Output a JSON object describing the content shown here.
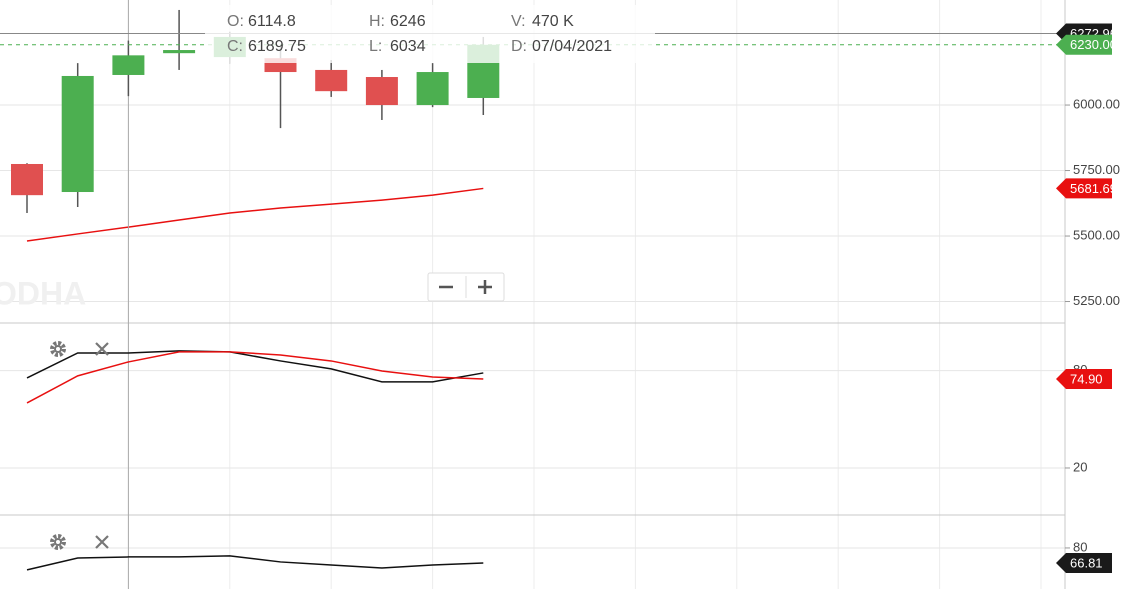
{
  "chart_data": [
    {
      "type": "candlestick",
      "categories": [
        null,
        null,
        null,
        null,
        null,
        null,
        null,
        null,
        null,
        null
      ],
      "open": [
        5775,
        5668,
        6114.8,
        6198,
        6183,
        6179,
        6134,
        6107,
        6000,
        6027
      ],
      "high": [
        5778,
        6160,
        6246,
        6363,
        6280,
        6230,
        6172,
        6134,
        6160,
        6260
      ],
      "low": [
        5588,
        5611,
        6034,
        6134,
        6160,
        5912,
        6031,
        5943,
        5992,
        5962
      ],
      "close": [
        5656,
        6111,
        6189.75,
        6210,
        6260,
        6126,
        6053,
        6000,
        6126,
        6230
      ],
      "up_color": "#4caf50",
      "down_color": "#e05050",
      "overlays": [
        {
          "type": "line",
          "color": "#e81010",
          "values": [
            5481,
            5508,
            5534,
            5561,
            5588,
            5607,
            5622,
            5637,
            5656,
            5681.69
          ]
        }
      ],
      "ylim": [
        5168,
        6401
      ],
      "yticks": [
        {
          "value": 6000,
          "label": "6000.00"
        },
        {
          "value": 5750,
          "label": "5750.00"
        },
        {
          "value": 5500,
          "label": "5500.00"
        },
        {
          "value": 5250,
          "label": "5250.00"
        }
      ],
      "grid": true,
      "markers": [
        {
          "value": 6272.96,
          "color": "#1a1a1a",
          "line": "solid"
        },
        {
          "value": 6230,
          "label": "6230.00",
          "color": "#4caf50",
          "line": "dashed"
        },
        {
          "value": 5681.69,
          "color": "#e81010",
          "line": "none"
        }
      ],
      "crosshair_index": 2,
      "watermark": "ODHA",
      "info": [
        {
          "label": "O:",
          "path": "open"
        },
        {
          "label": "H:",
          "path": "high"
        },
        {
          "label": "V:",
          "text": "470 K"
        },
        {
          "label": "C:",
          "path": "close"
        },
        {
          "label": "L:",
          "path": "low"
        },
        {
          "label": "D:",
          "text": "07/04/2021"
        }
      ]
    },
    {
      "type": "line",
      "series": [
        {
          "color": "#111111",
          "values": [
            75.5,
            90.9,
            90.9,
            92.2,
            91.6,
            86.0,
            81.1,
            73.1,
            73.1,
            78.6
          ]
        },
        {
          "color": "#e81010",
          "values": [
            60.1,
            76.8,
            85.4,
            91.6,
            91.6,
            89.7,
            86.0,
            79.8,
            76.1,
            74.9
          ]
        }
      ],
      "ylim": [
        -9,
        109.4
      ],
      "yticks": [
        20,
        80
      ],
      "grid": true,
      "markers": [
        {
          "value": 74.9,
          "label": "74.90",
          "color": "#e81010",
          "line": "none"
        }
      ]
    },
    {
      "type": "line",
      "series": [
        {
          "color": "#111111",
          "values": [
            60.7,
            71.2,
            72.1,
            72.1,
            73.0,
            67.7,
            65.0,
            62.4,
            65.0,
            66.81
          ]
        }
      ],
      "ylim": [
        43.9,
        108.1
      ],
      "yticks": [
        80
      ],
      "grid": true,
      "markers": [
        {
          "value": 66.81,
          "color": "#1a1a1a",
          "line": "none"
        }
      ]
    }
  ]
}
